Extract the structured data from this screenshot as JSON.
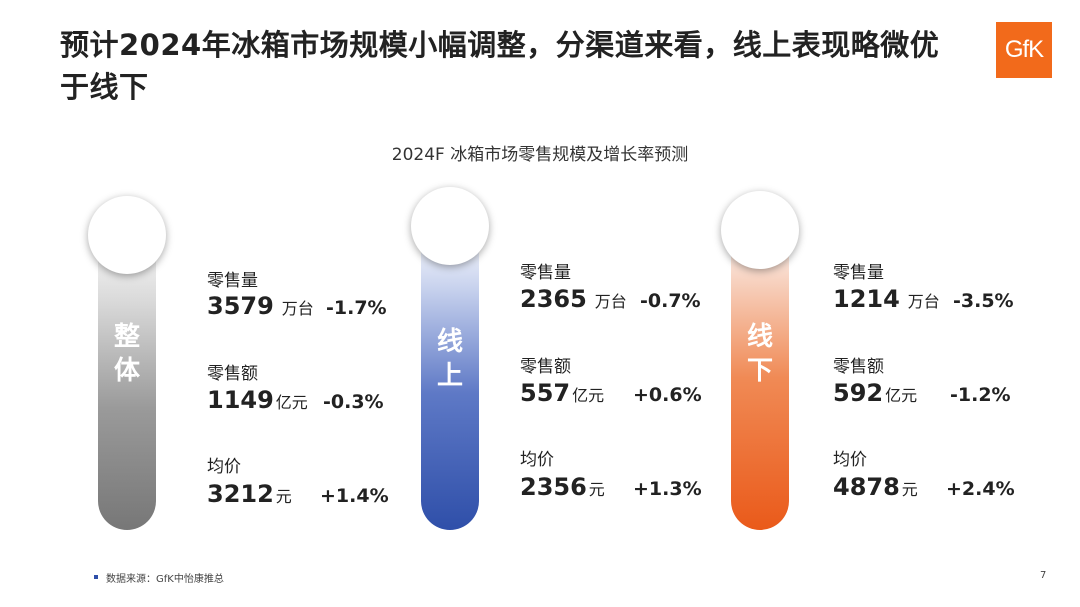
{
  "title": "预计2024年冰箱市场规模小幅调整，分渠道来看，线上表现略微优于线下",
  "logo": "GfK",
  "chart_data": {
    "type": "table",
    "title": "2024F 冰箱市场零售规模及增长率预测",
    "channels": [
      {
        "key": "overall",
        "label": [
          "整",
          "体"
        ],
        "color": "#8c8c8c",
        "metrics": [
          {
            "name": "零售量",
            "value": "3579",
            "unit": "万台",
            "growth": "-1.7%"
          },
          {
            "name": "零售额",
            "value": "1149",
            "unit": "亿元",
            "growth": "-0.3%"
          },
          {
            "name": "均价",
            "value": "3212",
            "unit": "元",
            "growth": "+1.4%"
          }
        ]
      },
      {
        "key": "online",
        "label": [
          "线",
          "上"
        ],
        "color": "#2f4fa9",
        "metrics": [
          {
            "name": "零售量",
            "value": "2365",
            "unit": "万台",
            "growth": "-0.7%"
          },
          {
            "name": "零售额",
            "value": "557",
            "unit": "亿元",
            "growth": "+0.6%"
          },
          {
            "name": "均价",
            "value": "2356",
            "unit": "元",
            "growth": "+1.3%"
          }
        ]
      },
      {
        "key": "offline",
        "label": [
          "线",
          "下"
        ],
        "color": "#ea5a1a",
        "metrics": [
          {
            "name": "零售量",
            "value": "1214",
            "unit": "万台",
            "growth": "-3.5%"
          },
          {
            "name": "零售额",
            "value": "592",
            "unit": "亿元",
            "growth": "-1.2%"
          },
          {
            "name": "均价",
            "value": "4878",
            "unit": "元",
            "growth": "+2.4%"
          }
        ]
      }
    ]
  },
  "footer": {
    "source": "数据来源：GfK中怡康推总",
    "page": "7"
  }
}
